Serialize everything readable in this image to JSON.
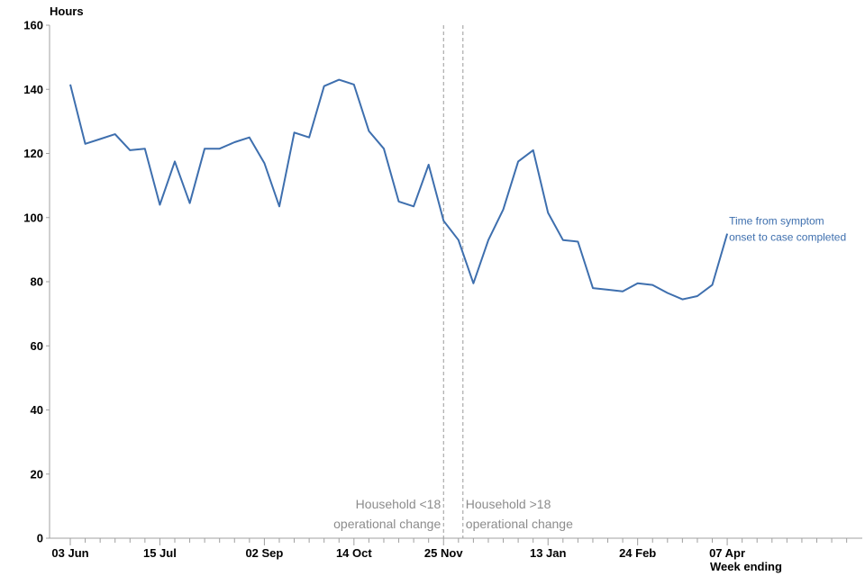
{
  "chart_data": {
    "type": "line",
    "ylabel": "Hours",
    "xlabel": "Week ending",
    "ylim": [
      0,
      160
    ],
    "yticks": [
      0,
      20,
      40,
      60,
      80,
      100,
      120,
      140,
      160
    ],
    "x_tick_labels": [
      {
        "index": 0,
        "label": "03 Jun"
      },
      {
        "index": 6,
        "label": "15 Jul"
      },
      {
        "index": 13,
        "label": "02 Sep"
      },
      {
        "index": 19,
        "label": "14 Oct"
      },
      {
        "index": 25,
        "label": "25 Nov"
      },
      {
        "index": 32,
        "label": "13 Jan"
      },
      {
        "index": 38,
        "label": "24 Feb"
      },
      {
        "index": 44,
        "label": "07 Apr"
      }
    ],
    "total_weeks": 53,
    "series": [
      {
        "name": "Time from symptom onset to case completed",
        "label_lines": [
          "Time from symptom",
          "onset to case completed"
        ],
        "color": "#3e6fae",
        "values": [
          141.5,
          123,
          124.5,
          126,
          121,
          121.5,
          104,
          117.5,
          104.5,
          121.5,
          121.5,
          123.5,
          125,
          117,
          103.5,
          126.5,
          125,
          141,
          143,
          141.5,
          127,
          121.5,
          105,
          103.5,
          116.5,
          99,
          93,
          79.5,
          93,
          102.5,
          117.5,
          121,
          101.5,
          93,
          92.5,
          78,
          77.5,
          77,
          79.5,
          79,
          76.5,
          74.5,
          75.5,
          79,
          95
        ]
      }
    ],
    "annotations": [
      {
        "at_index": 25.0,
        "side": "left",
        "lines": [
          "Household <18",
          "operational change"
        ]
      },
      {
        "at_index": 26.3,
        "side": "right",
        "lines": [
          "Household >18",
          "operational change"
        ]
      }
    ],
    "grid": false
  }
}
